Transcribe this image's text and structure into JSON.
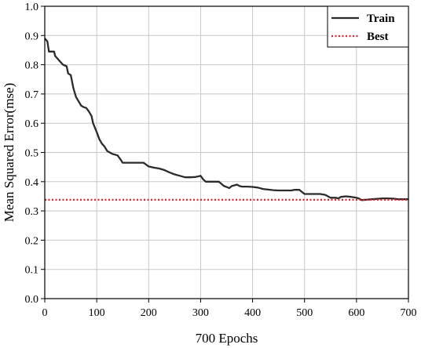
{
  "chart_data": {
    "type": "line",
    "xlabel": "700 Epochs",
    "ylabel": "Mean Squared Error(mse)",
    "xlim": [
      0,
      700
    ],
    "ylim": [
      0,
      1.0
    ],
    "xticks": [
      "0",
      "100",
      "200",
      "300",
      "400",
      "500",
      "600",
      "700"
    ],
    "yticks": [
      "0.0",
      "0.1",
      "0.2",
      "0.3",
      "0.4",
      "0.5",
      "0.6",
      "0.7",
      "0.8",
      "0.9",
      "1.0"
    ],
    "grid": true,
    "legend_position": "top-right",
    "series": [
      {
        "name": "Train",
        "color": "#2b2b2b",
        "style": "solid",
        "x": [
          0,
          5,
          8,
          18,
          20,
          35,
          42,
          45,
          50,
          55,
          60,
          65,
          70,
          75,
          80,
          85,
          90,
          93,
          100,
          105,
          110,
          115,
          120,
          130,
          140,
          145,
          150,
          160,
          180,
          190,
          200,
          210,
          220,
          230,
          240,
          250,
          260,
          270,
          280,
          290,
          295,
          300,
          305,
          310,
          320,
          335,
          345,
          350,
          355,
          360,
          370,
          375,
          380,
          385,
          390,
          400,
          410,
          420,
          430,
          440,
          450,
          460,
          475,
          480,
          490,
          495,
          500,
          510,
          520,
          530,
          540,
          545,
          550,
          560,
          565,
          570,
          580,
          590,
          600,
          605,
          610,
          630,
          650,
          660,
          670,
          680,
          690,
          700
        ],
        "y": [
          0.89,
          0.88,
          0.845,
          0.845,
          0.83,
          0.8,
          0.795,
          0.77,
          0.765,
          0.72,
          0.69,
          0.675,
          0.66,
          0.655,
          0.652,
          0.64,
          0.625,
          0.6,
          0.57,
          0.545,
          0.53,
          0.52,
          0.505,
          0.495,
          0.49,
          0.478,
          0.465,
          0.465,
          0.465,
          0.465,
          0.452,
          0.448,
          0.445,
          0.44,
          0.432,
          0.425,
          0.42,
          0.415,
          0.415,
          0.416,
          0.418,
          0.42,
          0.408,
          0.4,
          0.4,
          0.4,
          0.385,
          0.382,
          0.378,
          0.385,
          0.39,
          0.385,
          0.383,
          0.383,
          0.383,
          0.382,
          0.38,
          0.375,
          0.373,
          0.371,
          0.37,
          0.37,
          0.37,
          0.372,
          0.372,
          0.365,
          0.358,
          0.358,
          0.358,
          0.358,
          0.355,
          0.35,
          0.345,
          0.345,
          0.343,
          0.348,
          0.35,
          0.348,
          0.345,
          0.342,
          0.337,
          0.34,
          0.343,
          0.343,
          0.342,
          0.34,
          0.34,
          0.34
        ]
      },
      {
        "name": "Best",
        "color": "#e0202a",
        "style": "dotted",
        "x": [
          0,
          700
        ],
        "y": [
          0.338,
          0.338
        ]
      }
    ]
  }
}
